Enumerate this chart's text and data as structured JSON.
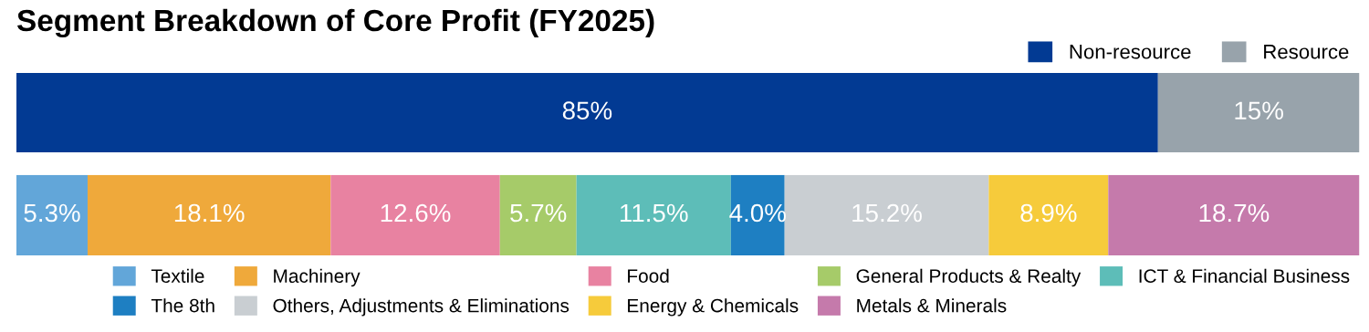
{
  "chart_data": [
    {
      "type": "bar",
      "title": "Segment Breakdown of Core Profit (FY2025)",
      "orientation": "horizontal",
      "stacked": true,
      "categories": [
        null
      ],
      "xlim": [
        0,
        100
      ],
      "tick_labels": false,
      "grid": false,
      "legend": "top right",
      "series": [
        {
          "name": "Non-resource",
          "color": "#023a93",
          "values": [
            85
          ],
          "value_labels": [
            "85%"
          ]
        },
        {
          "name": "Resource",
          "color": "#98a3ab",
          "values": [
            15
          ],
          "value_labels": [
            "15%"
          ]
        }
      ]
    },
    {
      "type": "bar",
      "orientation": "horizontal",
      "stacked": true,
      "categories": [
        null
      ],
      "xlim": [
        0,
        100
      ],
      "tick_labels": false,
      "grid": false,
      "legend": "bottom",
      "series": [
        {
          "name": "Textile",
          "color": "#62a6d9",
          "values": [
            5.3
          ],
          "value_labels": [
            "5.3%"
          ]
        },
        {
          "name": "Machinery",
          "color": "#efa93b",
          "values": [
            18.1
          ],
          "value_labels": [
            "18.1%"
          ]
        },
        {
          "name": "Food",
          "color": "#e882a1",
          "values": [
            12.6
          ],
          "value_labels": [
            "12.6%"
          ]
        },
        {
          "name": "General Products & Realty",
          "color": "#a6cb69",
          "values": [
            5.7
          ],
          "value_labels": [
            "5.7%"
          ]
        },
        {
          "name": "ICT & Financial Business",
          "color": "#5dbdb8",
          "values": [
            11.5
          ],
          "value_labels": [
            "11.5%"
          ]
        },
        {
          "name": "The 8th",
          "color": "#1e7fc2",
          "values": [
            4.0
          ],
          "value_labels": [
            "4.0%"
          ]
        },
        {
          "name": "Others, Adjustments & Eliminations",
          "color": "#c9ced2",
          "values": [
            15.2
          ],
          "value_labels": [
            "15.2%"
          ]
        },
        {
          "name": "Energy & Chemicals",
          "color": "#f6cb3b",
          "values": [
            8.9
          ],
          "value_labels": [
            "8.9%"
          ]
        },
        {
          "name": "Metals & Minerals",
          "color": "#c57aab",
          "values": [
            18.7
          ],
          "value_labels": [
            "18.7%"
          ]
        }
      ]
    }
  ]
}
